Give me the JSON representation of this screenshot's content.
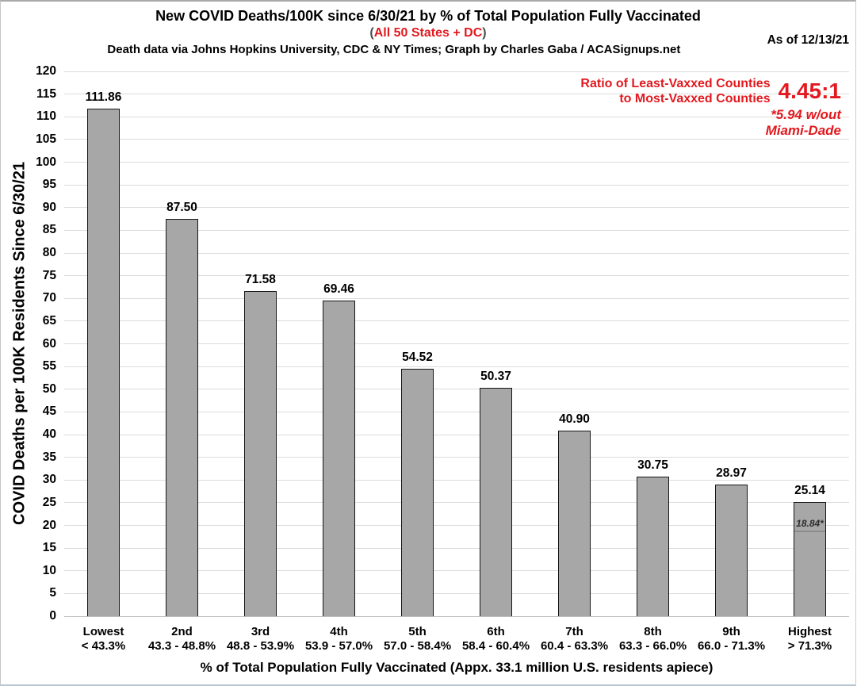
{
  "header": {
    "title": "New COVID Deaths/100K since 6/30/21 by % of Total Population Fully Vaccinated",
    "subtitle_open": "(",
    "subtitle": "All 50 States + DC",
    "subtitle_close": ")",
    "credit": "Death data via Johns Hopkins University, CDC & NY Times; Graph by Charles Gaba / ACASignups.net",
    "as_of": "As of 12/13/21"
  },
  "annotation": {
    "line1": "Ratio of Least-Vaxxed Counties",
    "line2": "to Most-Vaxxed Counties",
    "ratio": "4.45:1",
    "footnote_line1": "*5.94 w/out",
    "footnote_line2": "Miami-Dade"
  },
  "colors": {
    "red": "#e2191f",
    "paren_gray": "#4c4c4c",
    "bar_fill": "#a7a7a7",
    "bar_border": "#161616",
    "grid": "#dcdcdc",
    "axis_line": "#bdbdbd",
    "marker_line": "#8c8c8c"
  },
  "chart_data": {
    "type": "bar",
    "title": "New COVID Deaths/100K since 6/30/21 by % of Total Population Fully Vaccinated",
    "xlabel": "% of Total Population Fully Vaccinated (Appx. 33.1 million U.S. residents apiece)",
    "ylabel": "COVID Deaths per 100K Residents Since 6/30/21",
    "ylim": [
      0,
      120
    ],
    "ytick_step": 5,
    "grid": true,
    "legend": "none",
    "categories": [
      {
        "rank": "Lowest",
        "range": "< 43.3%"
      },
      {
        "rank": "2nd",
        "range": "43.3 - 48.8%"
      },
      {
        "rank": "3rd",
        "range": "48.8 - 53.9%"
      },
      {
        "rank": "4th",
        "range": "53.9 - 57.0%"
      },
      {
        "rank": "5th",
        "range": "57.0 - 58.4%"
      },
      {
        "rank": "6th",
        "range": "58.4 - 60.4%"
      },
      {
        "rank": "7th",
        "range": "60.4 - 63.3%"
      },
      {
        "rank": "8th",
        "range": "63.3 - 66.0%"
      },
      {
        "rank": "9th",
        "range": "66.0 - 71.3%"
      },
      {
        "rank": "Highest",
        "range": "> 71.3%"
      }
    ],
    "values": [
      111.86,
      87.5,
      71.58,
      69.46,
      54.52,
      50.37,
      40.9,
      30.75,
      28.97,
      25.14
    ],
    "value_labels": [
      "111.86",
      "87.50",
      "71.58",
      "69.46",
      "54.52",
      "50.37",
      "40.90",
      "30.75",
      "28.97",
      "25.14"
    ],
    "special_marker": {
      "bar_index": 9,
      "value": 18.84,
      "label": "18.84*"
    }
  }
}
